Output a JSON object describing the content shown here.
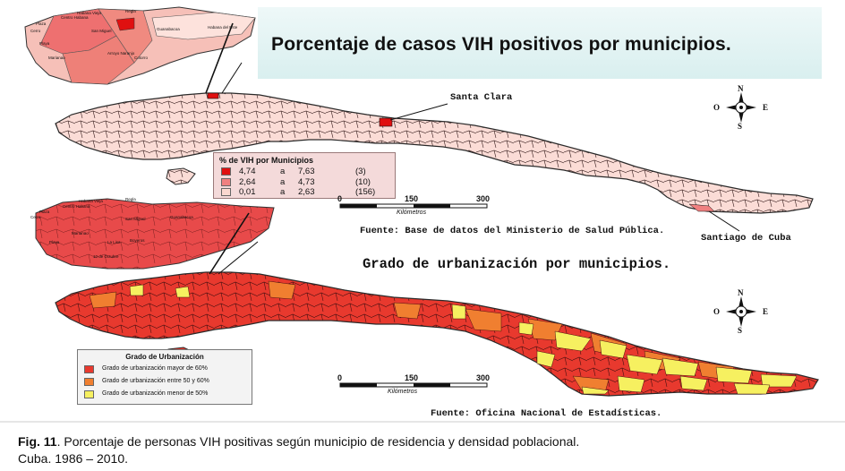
{
  "title": "Porcentaje de casos VIH positivos por municipios.",
  "cities": {
    "santa_clara": "Santa Clara",
    "santiago": "Santiago de Cuba"
  },
  "compass": {
    "n": "N",
    "s": "S",
    "e": "E",
    "o": "O"
  },
  "legend_vih": {
    "title": "% de VIH por Municipios",
    "rows": [
      {
        "low": "4,74",
        "sep": "a",
        "high": "7,63",
        "count": "(3)",
        "color": "#e01010"
      },
      {
        "low": "2,64",
        "sep": "a",
        "high": "4,73",
        "count": "(10)",
        "color": "#f08080"
      },
      {
        "low": "0,01",
        "sep": "a",
        "high": "2,63",
        "count": "(156)",
        "color": "#fbd8d0"
      }
    ]
  },
  "scale1": {
    "t0": "0",
    "t1": "150",
    "t2": "300",
    "unit": "Kilómetros"
  },
  "source1": "Fuente: Base de datos del Ministerio de Salud Pública.",
  "heading2": "Grado de urbanización por municipios.",
  "legend_urb": {
    "title": "Grado de Urbanización",
    "rows": [
      {
        "label": "Grado de urbanización mayor de 60%",
        "color": "#e8392e"
      },
      {
        "label": "Grado de urbanización entre 50 y 60%",
        "color": "#f07f30"
      },
      {
        "label": "Grado de urbanización menor de 50%",
        "color": "#f6f060"
      }
    ]
  },
  "scale2": {
    "t0": "0",
    "t1": "150",
    "t2": "300",
    "unit": "Kilómetros"
  },
  "source2": "Fuente: Oficina Nacional de Estadísticas.",
  "inset_labels": {
    "habana_vieja": "Habana Vieja",
    "centro_habana": "Centro Habana",
    "regla": "Regla",
    "plaza": "Plaza",
    "cerro": "Cerro",
    "guanabacoa": "Guanabacoa",
    "san_miguel": "San Miguel",
    "habana_este": "Habana del Este",
    "playa": "Playa",
    "marianao": "Marianao",
    "lisa": "La Lisa",
    "boyeros": "Boyeros",
    "arroyo": "Arroyo Naranjo",
    "cotorro": "Cotorro",
    "diez_octubre": "10 de Octubre"
  },
  "caption": {
    "label": "Fig. 11",
    "text": ". Porcentaje de personas VIH positivas según municipio de residencia y densidad poblacional.",
    "line2": "Cuba. 1986 – 2010."
  }
}
